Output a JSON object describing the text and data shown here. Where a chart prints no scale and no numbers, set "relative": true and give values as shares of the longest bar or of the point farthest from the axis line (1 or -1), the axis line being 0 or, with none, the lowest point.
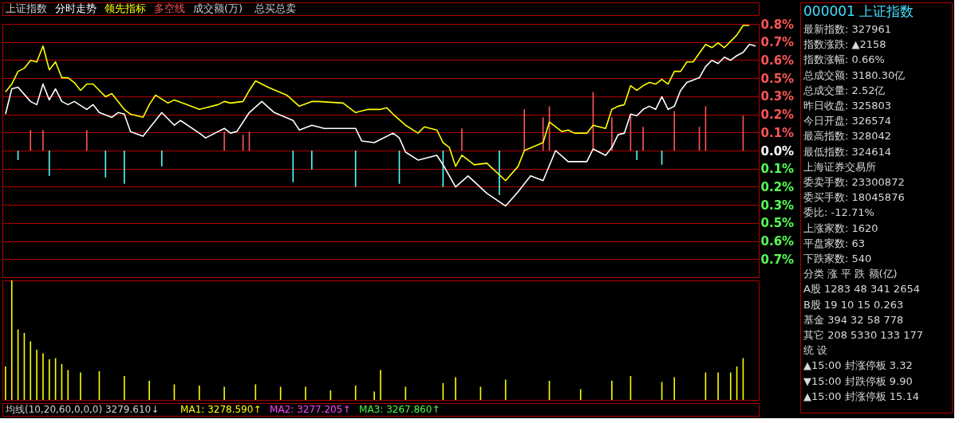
{
  "chart_data": [
    {
      "type": "line",
      "title": "上证指数",
      "grid": "y",
      "tick_labels": "y",
      "marker": "none",
      "line_style": "solid",
      "annotations": [
        "成交额(万)",
        "总买总卖"
      ],
      "categories": [
        null,
        null,
        null,
        null,
        null,
        null,
        null,
        null,
        null,
        null,
        null,
        null,
        null,
        null,
        null,
        null,
        null,
        null,
        null,
        null,
        null,
        null,
        null,
        null,
        null,
        null,
        null,
        null,
        null,
        null,
        null,
        null,
        null,
        null,
        null,
        null,
        null,
        null,
        null,
        null,
        null,
        null,
        null,
        null,
        null,
        null,
        null,
        null,
        null,
        null,
        null,
        null,
        null,
        null,
        null,
        null,
        null,
        null,
        null,
        null,
        null,
        null,
        null,
        null,
        null,
        null,
        null,
        null,
        null,
        null,
        null,
        null,
        null,
        null,
        null,
        null,
        null,
        null,
        null,
        null,
        null,
        null,
        null,
        null,
        null,
        null,
        null,
        null,
        null,
        null,
        null,
        null,
        null,
        null,
        null,
        null,
        null,
        null,
        null,
        null,
        null,
        null,
        null,
        null,
        null,
        null,
        null,
        null,
        null,
        null,
        null,
        null,
        null,
        null,
        null,
        null,
        null,
        null,
        null,
        null,
        null
      ],
      "ylim": [
        -0.8,
        0.8
      ],
      "yticks": [
        {
          "value": 0.8,
          "label": "0.8%"
        },
        {
          "value": 0.6857,
          "label": "0.7%"
        },
        {
          "value": 0.5714,
          "label": "0.6%"
        },
        {
          "value": 0.4571,
          "label": "0.5%"
        },
        {
          "value": 0.3429,
          "label": "0.3%"
        },
        {
          "value": 0.2286,
          "label": "0.2%"
        },
        {
          "value": 0.1143,
          "label": "0.1%"
        },
        {
          "value": 0,
          "label": "0.0%"
        },
        {
          "value": -0.1143,
          "label": "0.1%"
        },
        {
          "value": -0.2286,
          "label": "0.2%"
        },
        {
          "value": -0.3429,
          "label": "0.3%"
        },
        {
          "value": -0.4571,
          "label": "0.5%"
        },
        {
          "value": -0.5714,
          "label": "0.6%"
        },
        {
          "value": -0.6857,
          "label": "0.7%"
        }
      ],
      "series": [
        {
          "name": "分时走势",
          "type": "line",
          "color": "#ffffff",
          "values": [
            0.23,
            0.39,
            0.4,
            null,
            0.31,
            0.29,
            0.42,
            0.32,
            0.39,
            0.31,
            0.29,
            0.31,
            null,
            0.26,
            0.29,
            0.24,
            null,
            0.21,
            0.24,
            0.23,
            0.12,
            null,
            0.09,
            null,
            null,
            0.24,
            null,
            0.16,
            0.19,
            null,
            null,
            0.11,
            0.08,
            null,
            null,
            0.14,
            0.11,
            0.12,
            null,
            0.24,
            null,
            0.31,
            null,
            0.24,
            null,
            null,
            0.19,
            0.13,
            null,
            0.16,
            null,
            0.14,
            null,
            null,
            0.14,
            null,
            0.14,
            0.06,
            null,
            0.05,
            0.07,
            null,
            0.11,
            0.08,
            -0.01,
            null,
            -0.06,
            null,
            null,
            -0.03,
            -0.09,
            null,
            -0.23,
            null,
            -0.16,
            null,
            null,
            -0.27,
            null,
            null,
            -0.35,
            null,
            -0.26,
            null,
            -0.16,
            null,
            -0.19,
            null,
            0.0,
            null,
            -0.07,
            null,
            null,
            -0.07,
            0.01,
            null,
            -0.03,
            0.02,
            0.1,
            0.11,
            0.23,
            0.22,
            0.26,
            0.28,
            0.26,
            0.34,
            0.26,
            0.28,
            0.38,
            0.43,
            null,
            0.46,
            0.53,
            0.57,
            0.55,
            0.59,
            0.57,
            0.6,
            0.62,
            0.67,
            0.66
          ]
        },
        {
          "name": "领先指标",
          "type": "line",
          "color": "#ffff00",
          "values": [
            0.37,
            0.42,
            0.5,
            0.52,
            0.57,
            0.56,
            0.66,
            0.51,
            0.56,
            0.46,
            0.46,
            0.43,
            0.38,
            0.42,
            0.42,
            0.38,
            0.34,
            0.36,
            null,
            0.26,
            0.23,
            null,
            0.21,
            0.29,
            0.35,
            null,
            0.3,
            0.32,
            null,
            0.29,
            null,
            0.26,
            null,
            null,
            0.29,
            0.31,
            0.3,
            null,
            0.31,
            0.38,
            0.44,
            null,
            0.4,
            null,
            null,
            0.35,
            null,
            0.28,
            null,
            0.31,
            0.31,
            null,
            null,
            null,
            0.3,
            null,
            0.24,
            null,
            0.26,
            null,
            0.26,
            0.27,
            0.23,
            null,
            0.16,
            null,
            0.11,
            0.15,
            null,
            0.13,
            0.05,
            0.02,
            -0.1,
            -0.03,
            null,
            -0.09,
            null,
            -0.08,
            null,
            null,
            -0.19,
            null,
            -0.1,
            0.0,
            null,
            null,
            0.05,
            0.18,
            null,
            0.12,
            0.13,
            0.11,
            0.11,
            0.11,
            0.16,
            null,
            0.14,
            0.26,
            0.28,
            0.29,
            0.41,
            0.38,
            0.41,
            0.43,
            0.42,
            0.45,
            0.42,
            0.5,
            0.5,
            0.56,
            0.56,
            null,
            0.67,
            0.65,
            0.68,
            0.65,
            0.69,
            0.73,
            0.79,
            0.79,
            null
          ]
        },
        {
          "name": "多空线",
          "type": "bar",
          "color": "#ff5555",
          "values": [
            null,
            null,
            null,
            null,
            0.13,
            null,
            0.13,
            null,
            null,
            null,
            null,
            null,
            null,
            0.13,
            null,
            null,
            null,
            null,
            null,
            null,
            null,
            null,
            null,
            null,
            null,
            null,
            null,
            null,
            null,
            null,
            null,
            null,
            null,
            null,
            null,
            0.12,
            null,
            null,
            0.1,
            0.12,
            null,
            null,
            null,
            null,
            null,
            null,
            null,
            null,
            null,
            null,
            null,
            null,
            null,
            null,
            null,
            null,
            null,
            null,
            null,
            null,
            null,
            null,
            null,
            null,
            null,
            null,
            null,
            null,
            null,
            null,
            null,
            null,
            null,
            0.14,
            null,
            null,
            null,
            null,
            null,
            null,
            null,
            null,
            null,
            0.26,
            null,
            null,
            0.21,
            0.28,
            null,
            null,
            null,
            null,
            null,
            null,
            0.37,
            null,
            null,
            0.21,
            null,
            null,
            0.22,
            null,
            0.15,
            null,
            null,
            null,
            null,
            0.25,
            null,
            null,
            null,
            0.15,
            0.28,
            null,
            null,
            null,
            null,
            null,
            0.22,
            null,
            null
          ]
        },
        {
          "type": "bar",
          "color": "#54ffff",
          "values": [
            null,
            null,
            -0.06,
            null,
            null,
            null,
            null,
            -0.16,
            null,
            null,
            null,
            null,
            null,
            null,
            null,
            null,
            -0.17,
            null,
            null,
            -0.21,
            null,
            null,
            null,
            null,
            null,
            -0.1,
            null,
            null,
            null,
            null,
            null,
            null,
            null,
            null,
            null,
            null,
            null,
            null,
            null,
            null,
            null,
            null,
            null,
            null,
            null,
            null,
            -0.2,
            null,
            null,
            -0.12,
            null,
            null,
            null,
            null,
            null,
            null,
            -0.23,
            null,
            null,
            null,
            null,
            null,
            null,
            -0.21,
            null,
            null,
            null,
            null,
            null,
            null,
            -0.23,
            null,
            null,
            null,
            null,
            null,
            null,
            null,
            null,
            -0.28,
            null,
            null,
            null,
            null,
            null,
            null,
            null,
            null,
            null,
            null,
            null,
            null,
            null,
            null,
            null,
            null,
            null,
            null,
            null,
            null,
            null,
            -0.06,
            null,
            null,
            null,
            -0.09,
            null,
            null,
            null,
            null,
            null,
            null,
            null,
            null,
            null,
            null,
            null,
            null,
            null,
            null,
            null
          ]
        }
      ]
    },
    {
      "type": "bar",
      "relative": true,
      "tick_labels": false,
      "color": "#ffff00",
      "categories": [
        null,
        null,
        null,
        null,
        null,
        null,
        null,
        null,
        null,
        null,
        null,
        null,
        null,
        null,
        null,
        null,
        null,
        null,
        null,
        null,
        null,
        null,
        null,
        null,
        null,
        null,
        null,
        null,
        null,
        null,
        null,
        null,
        null,
        null,
        null,
        null,
        null,
        null,
        null,
        null,
        null,
        null,
        null,
        null,
        null,
        null,
        null,
        null,
        null,
        null,
        null,
        null,
        null,
        null,
        null,
        null,
        null,
        null,
        null,
        null,
        null,
        null,
        null,
        null,
        null,
        null,
        null,
        null,
        null,
        null,
        null,
        null,
        null,
        null,
        null,
        null,
        null,
        null,
        null,
        null,
        null,
        null,
        null,
        null,
        null,
        null,
        null,
        null,
        null,
        null,
        null,
        null,
        null,
        null,
        null,
        null,
        null,
        null,
        null,
        null,
        null,
        null,
        null,
        null,
        null,
        null,
        null,
        null,
        null,
        null,
        null,
        null,
        null,
        null,
        null,
        null,
        null,
        null,
        null,
        null,
        null
      ],
      "values": [
        0.28,
        1.0,
        0.59,
        0.56,
        0.49,
        0.42,
        0.39,
        0.34,
        0.35,
        0.3,
        0.25,
        null,
        0.23,
        null,
        null,
        0.24,
        null,
        null,
        null,
        0.2,
        null,
        null,
        null,
        0.16,
        null,
        null,
        null,
        0.13,
        null,
        null,
        null,
        0.12,
        null,
        null,
        null,
        0.11,
        null,
        null,
        null,
        null,
        0.13,
        null,
        null,
        null,
        0.11,
        null,
        null,
        null,
        0.11,
        null,
        null,
        null,
        0.08,
        null,
        null,
        null,
        0.12,
        null,
        null,
        0.07,
        0.25,
        null,
        null,
        null,
        0.11,
        null,
        null,
        null,
        null,
        null,
        0.14,
        null,
        0.19,
        null,
        null,
        null,
        0.11,
        null,
        null,
        null,
        0.17,
        null,
        null,
        null,
        null,
        null,
        null,
        0.16,
        null,
        null,
        null,
        null,
        0.09,
        null,
        null,
        null,
        null,
        0.16,
        null,
        null,
        0.2,
        null,
        null,
        null,
        null,
        0.15,
        null,
        0.19,
        null,
        null,
        null,
        null,
        0.23,
        null,
        0.23,
        null,
        0.23,
        0.28,
        0.35,
        null,
        null
      ],
      "annotations": [
        "均线(10,20,60,0,0,0) 3279.610↓",
        "MA1: 3278.590↑",
        "MA2: 3277.205↑",
        "MA3: 3267.860↑"
      ]
    },
    {
      "type": "other",
      "title": "000001 上证指数",
      "annotations": [
        "最新指数: 327961",
        "指数涨跌: ▲2158",
        "指数涨幅: 0.66%",
        "总成交额: 3180.30亿",
        "总成交量: 2.52亿",
        "昨日收盘: 325803",
        "今日开盘: 326574",
        "最高指数: 328042",
        "最低指数: 324614",
        "上海证券交易所",
        "委卖手数: 23300872",
        "委买手数: 18045876",
        "委比: -12.71%",
        "上涨家数: 1620",
        "平盘家数: 63",
        "下跌家数: 540",
        "分类 涨 平 跌 额(亿)",
        "A股 1283 48 341 2654",
        "B股 19 10 15 0.263",
        "基金 394 32 58 778",
        "其它 208 5330 133 177",
        "统 设",
        "▲15:00 封涨停板 3.32",
        "▼15:00 封跌停板 9.90",
        "▲15:00 封涨停板 15.14"
      ]
    }
  ]
}
